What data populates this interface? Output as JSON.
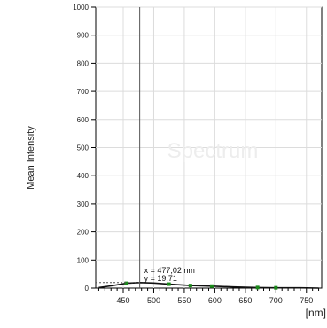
{
  "chart_data": {
    "type": "line",
    "title": "",
    "watermark": "Spectrum",
    "ylabel": "Mean Intensity",
    "xlabel": "[nm]",
    "xlim": [
      405,
      775
    ],
    "ylim": [
      0,
      1000
    ],
    "x_ticks": [
      450,
      500,
      550,
      600,
      650,
      700,
      750
    ],
    "y_ticks": [
      0,
      100,
      200,
      300,
      400,
      500,
      600,
      700,
      800,
      900,
      1000
    ],
    "grid": true,
    "series": [
      {
        "color": "#1a8a1a",
        "points": [
          {
            "x": 410,
            "y": 2
          },
          {
            "x": 430,
            "y": 8
          },
          {
            "x": 455,
            "y": 17
          },
          {
            "x": 477,
            "y": 19.71
          },
          {
            "x": 500,
            "y": 18
          },
          {
            "x": 525,
            "y": 14
          },
          {
            "x": 560,
            "y": 9
          },
          {
            "x": 595,
            "y": 7
          },
          {
            "x": 630,
            "y": 4
          },
          {
            "x": 670,
            "y": 2
          },
          {
            "x": 700,
            "y": 1
          },
          {
            "x": 740,
            "y": 1
          },
          {
            "x": 770,
            "y": 0
          }
        ],
        "markers": [
          {
            "x": 455,
            "y": 17
          },
          {
            "x": 525,
            "y": 14
          },
          {
            "x": 560,
            "y": 9
          },
          {
            "x": 595,
            "y": 7
          },
          {
            "x": 670,
            "y": 2
          },
          {
            "x": 700,
            "y": 1
          }
        ]
      }
    ],
    "cursor": {
      "x": 477.02,
      "y": 19.71,
      "x_text": "x = 477,02 nm",
      "y_text": "y = 19,71"
    },
    "colors": {
      "plot_background": "#ffffff",
      "grid": "#dcdcdc",
      "axis": "#000000",
      "watermark": "#ededed",
      "cursor": "#555555"
    }
  }
}
